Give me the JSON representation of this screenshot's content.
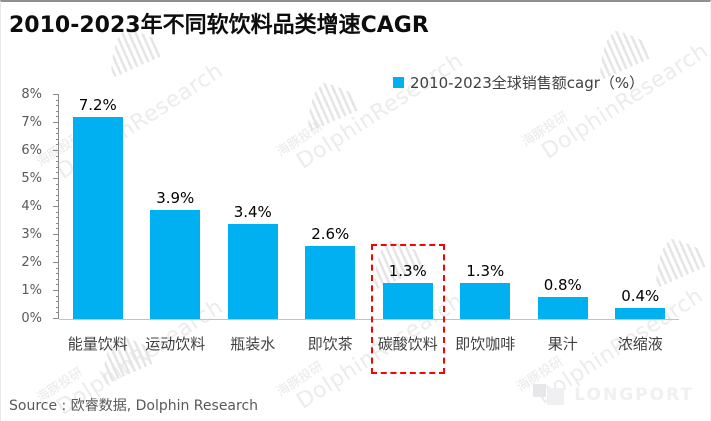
{
  "title": "2010-2023年不同软饮料品类增速CAGR",
  "legend": {
    "label": "2010-2023全球销售额cagr（%）",
    "color": "#00b0f0"
  },
  "source": "Source : 欧睿数据, Dolphin Research",
  "branding": {
    "longport": "LONGPORT"
  },
  "watermark": {
    "cn": "海豚投研",
    "en": "DolphinResearch"
  },
  "chart_data": {
    "type": "bar",
    "title": "2010-2023年不同软饮料品类增速CAGR",
    "series_name": "2010-2023全球销售额cagr（%）",
    "categories": [
      "能量饮料",
      "运动饮料",
      "瓶装水",
      "即饮茶",
      "碳酸饮料",
      "即饮咖啡",
      "果汁",
      "浓缩液"
    ],
    "values": [
      7.2,
      3.9,
      3.4,
      2.6,
      1.3,
      1.3,
      0.8,
      0.4
    ],
    "value_labels": [
      "7.2%",
      "3.9%",
      "3.4%",
      "2.6%",
      "1.3%",
      "1.3%",
      "0.8%",
      "0.4%"
    ],
    "y_ticks": [
      "0%",
      "1%",
      "2%",
      "3%",
      "4%",
      "5%",
      "6%",
      "7%",
      "8%"
    ],
    "ylim": [
      0,
      8
    ],
    "bar_color": "#00b0f0",
    "highlight_index": 4,
    "highlight_color": "#fd0000",
    "grid": false,
    "legend_position": "top-right",
    "xlabel": "",
    "ylabel": ""
  }
}
